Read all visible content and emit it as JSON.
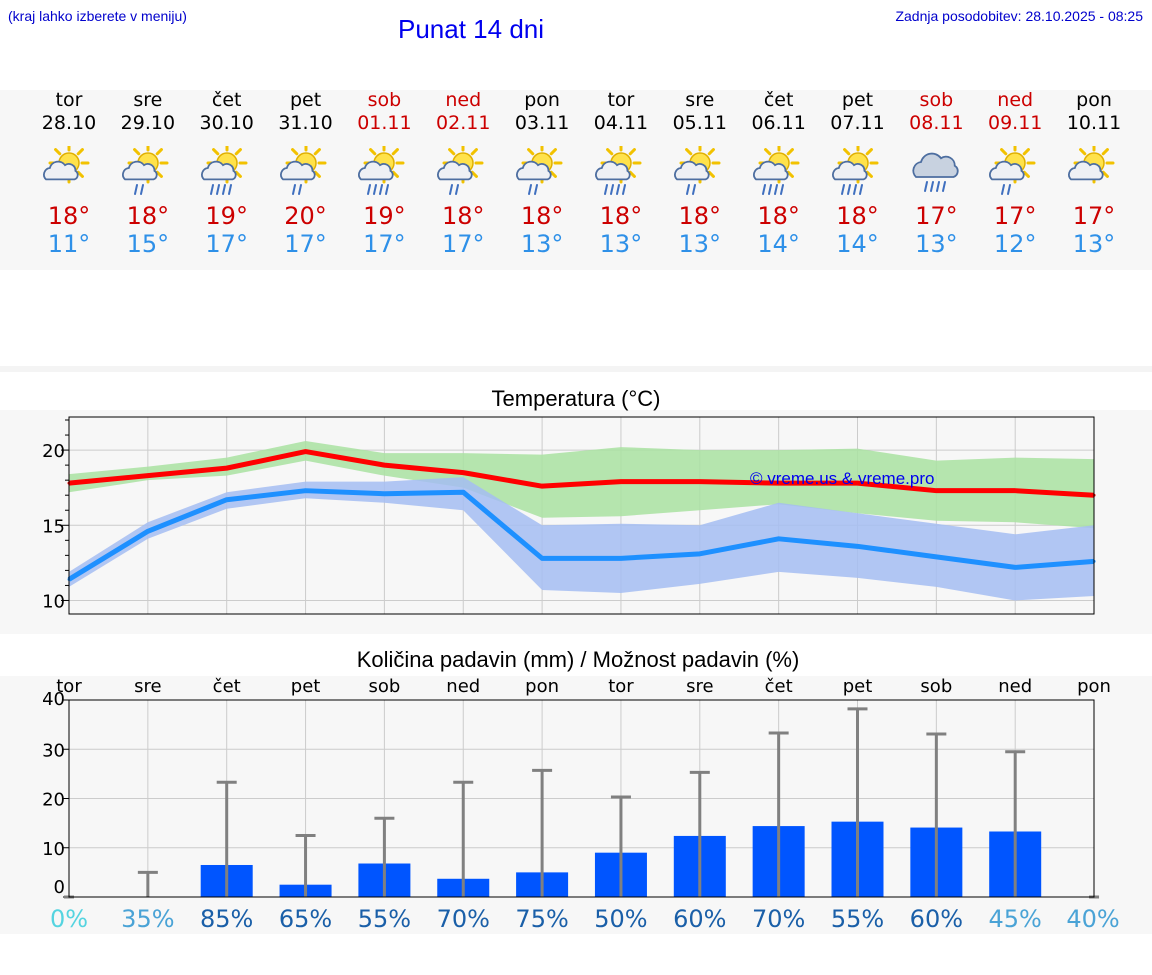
{
  "header": {
    "hint": "(kraj lahko izberete v meniju)",
    "title": "Punat 14 dni",
    "updated": "Zadnja posodobitev: 28.10.2025 - 08:25"
  },
  "colors": {
    "title": "#0000ee",
    "link": "#0000cc",
    "max_temp": "#cc0000",
    "min_temp": "#2e90e8",
    "max_line": "#ff0000",
    "max_band": "#a9e2a1",
    "min_line": "#1e90ff",
    "min_band": "#a4bdf2",
    "bar": "#0055ff",
    "whisker": "#808080"
  },
  "days": [
    {
      "name": "tor",
      "date": "28.10",
      "weekend": false,
      "icon": "sun-cloud-icon",
      "max": "18°",
      "min": "11°"
    },
    {
      "name": "sre",
      "date": "29.10",
      "weekend": false,
      "icon": "sun-cloud-rain-icon",
      "max": "18°",
      "min": "15°"
    },
    {
      "name": "čet",
      "date": "30.10",
      "weekend": false,
      "icon": "sun-cloud-heavy-rain-icon",
      "max": "19°",
      "min": "17°"
    },
    {
      "name": "pet",
      "date": "31.10",
      "weekend": false,
      "icon": "sun-cloud-rain-icon",
      "max": "20°",
      "min": "17°"
    },
    {
      "name": "sob",
      "date": "01.11",
      "weekend": true,
      "icon": "sun-cloud-heavy-rain-icon",
      "max": "19°",
      "min": "17°"
    },
    {
      "name": "ned",
      "date": "02.11",
      "weekend": true,
      "icon": "sun-cloud-rain-icon",
      "max": "18°",
      "min": "17°"
    },
    {
      "name": "pon",
      "date": "03.11",
      "weekend": false,
      "icon": "sun-cloud-rain-icon",
      "max": "18°",
      "min": "13°"
    },
    {
      "name": "tor",
      "date": "04.11",
      "weekend": false,
      "icon": "sun-cloud-heavy-rain-icon",
      "max": "18°",
      "min": "13°"
    },
    {
      "name": "sre",
      "date": "05.11",
      "weekend": false,
      "icon": "sun-cloud-rain-icon",
      "max": "18°",
      "min": "13°"
    },
    {
      "name": "čet",
      "date": "06.11",
      "weekend": false,
      "icon": "sun-cloud-heavy-rain-icon",
      "max": "18°",
      "min": "14°"
    },
    {
      "name": "pet",
      "date": "07.11",
      "weekend": false,
      "icon": "sun-cloud-heavy-rain-icon",
      "max": "18°",
      "min": "14°"
    },
    {
      "name": "sob",
      "date": "08.11",
      "weekend": true,
      "icon": "cloud-heavy-rain-icon",
      "max": "17°",
      "min": "13°"
    },
    {
      "name": "ned",
      "date": "09.11",
      "weekend": true,
      "icon": "sun-cloud-rain-icon",
      "max": "17°",
      "min": "12°"
    },
    {
      "name": "pon",
      "date": "10.11",
      "weekend": false,
      "icon": "sun-cloud-icon",
      "max": "17°",
      "min": "13°"
    }
  ],
  "chart_data": [
    {
      "type": "line",
      "title": "Temperatura (°C)",
      "watermark": "© vreme.us & vreme.pro",
      "x": [
        "28.10",
        "29.10",
        "30.10",
        "31.10",
        "01.11",
        "02.11",
        "03.11",
        "04.11",
        "05.11",
        "06.11",
        "07.11",
        "08.11",
        "09.11",
        "10.11"
      ],
      "ylim": [
        9.1,
        22.2
      ],
      "yticks": [
        10,
        15,
        20
      ],
      "grid": true,
      "series": [
        {
          "kind": "max",
          "values": [
            17.8,
            18.3,
            18.8,
            19.9,
            19.0,
            18.5,
            17.6,
            17.9,
            17.9,
            17.8,
            17.8,
            17.3,
            17.3,
            17.0
          ],
          "band_low": [
            17.2,
            18.0,
            18.3,
            19.3,
            18.3,
            17.5,
            15.5,
            15.6,
            16.0,
            16.4,
            15.8,
            15.3,
            15.2,
            14.8
          ],
          "band_high": [
            18.4,
            18.9,
            19.5,
            20.6,
            19.8,
            19.8,
            19.7,
            20.2,
            20.0,
            20.0,
            20.1,
            19.3,
            19.5,
            19.4
          ]
        },
        {
          "kind": "min",
          "values": [
            11.4,
            14.6,
            16.7,
            17.3,
            17.1,
            17.2,
            12.8,
            12.8,
            13.1,
            14.1,
            13.6,
            12.9,
            12.2,
            12.6
          ],
          "band_low": [
            10.9,
            14.1,
            16.1,
            16.8,
            16.5,
            16.0,
            10.7,
            10.5,
            11.1,
            11.9,
            11.5,
            10.9,
            10.0,
            10.3
          ],
          "band_high": [
            11.9,
            15.2,
            17.2,
            17.9,
            17.9,
            18.2,
            15.0,
            15.1,
            15.0,
            16.5,
            15.8,
            15.1,
            14.4,
            15.0
          ]
        }
      ]
    },
    {
      "type": "bar",
      "title": "Količina padavin (mm) / Možnost padavin (%)",
      "categories": [
        "tor",
        "sre",
        "čet",
        "pet",
        "sob",
        "ned",
        "pon",
        "tor",
        "sre",
        "čet",
        "pet",
        "sob",
        "ned",
        "pon"
      ],
      "ylim": [
        0,
        40
      ],
      "yticks": [
        0,
        10,
        20,
        30,
        40
      ],
      "grid": true,
      "values": [
        0,
        0,
        6.5,
        2.5,
        6.8,
        3.7,
        5.0,
        9.0,
        12.4,
        14.4,
        15.3,
        14.1,
        13.3,
        0
      ],
      "whisker_high": [
        0,
        5.0,
        23.3,
        12.5,
        16.0,
        23.3,
        25.7,
        20.3,
        25.3,
        33.3,
        38.2,
        33.1,
        29.5,
        0
      ],
      "probability": [
        "0%",
        "35%",
        "85%",
        "65%",
        "55%",
        "70%",
        "75%",
        "50%",
        "60%",
        "70%",
        "55%",
        "60%",
        "45%",
        "40%"
      ],
      "probability_colors": [
        "#55d4e0",
        "#4aa3d6",
        "#1a5fa8",
        "#1a5fa8",
        "#1a5fa8",
        "#1a5fa8",
        "#1a5fa8",
        "#1a5fa8",
        "#1a5fa8",
        "#1a5fa8",
        "#1a5fa8",
        "#1a5fa8",
        "#4aa3d6",
        "#4aa3d6"
      ]
    }
  ]
}
